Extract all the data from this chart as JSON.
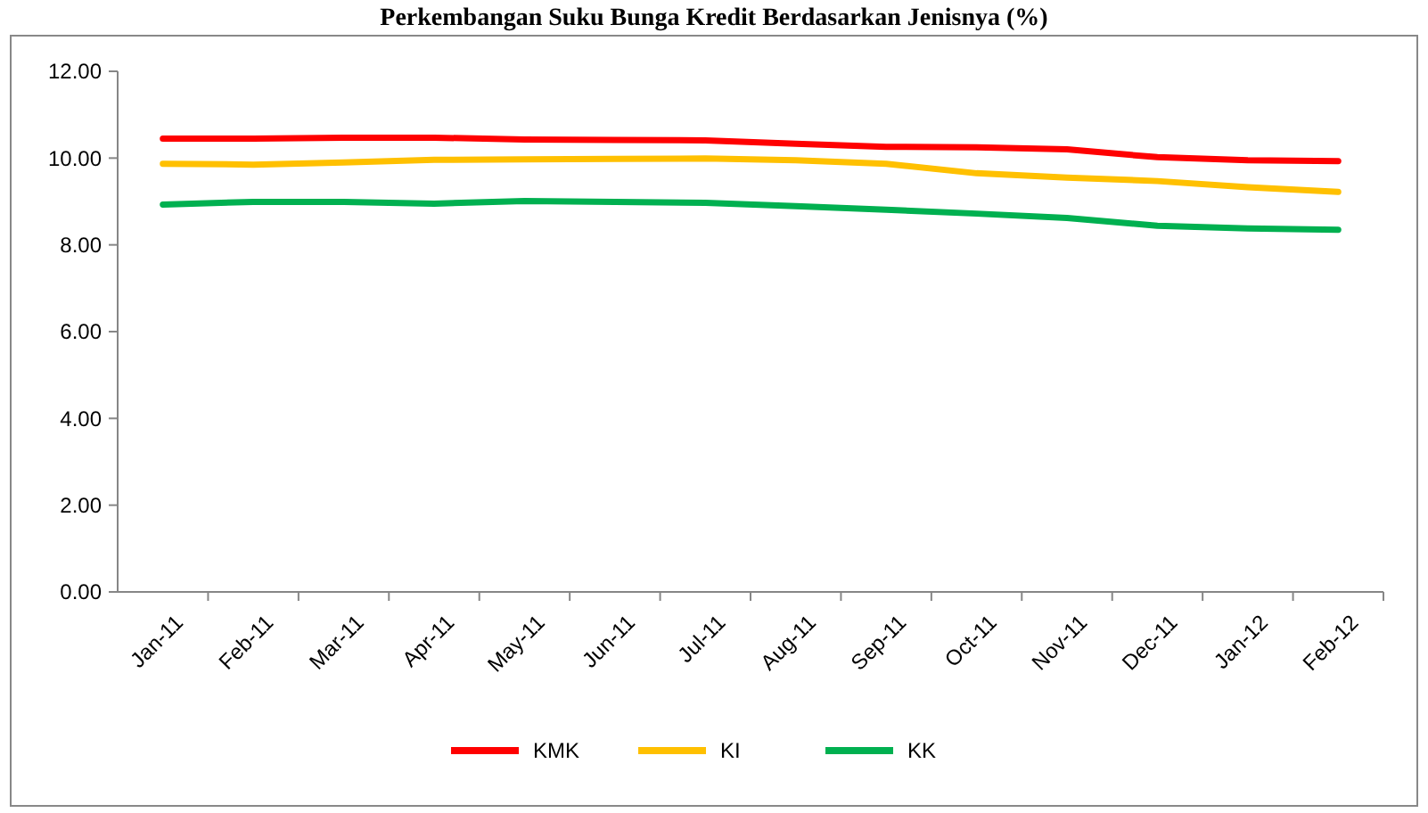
{
  "chart_data": {
    "type": "line",
    "title": "Perkembangan Suku Bunga Kredit Berdasarkan Jenisnya (%)",
    "categories": [
      "Jan-11",
      "Feb-11",
      "Mar-11",
      "Apr-11",
      "May-11",
      "Jun-11",
      "Jul-11",
      "Aug-11",
      "Sep-11",
      "Oct-11",
      "Nov-11",
      "Dec-11",
      "Jan-12",
      "Feb-12"
    ],
    "series": [
      {
        "name": "KMK",
        "color": "#ff0000",
        "values": [
          10.45,
          10.45,
          10.47,
          10.47,
          10.43,
          10.42,
          10.41,
          10.33,
          10.26,
          10.25,
          10.2,
          10.02,
          9.95,
          9.93
        ]
      },
      {
        "name": "KI",
        "color": "#ffc000",
        "values": [
          9.87,
          9.85,
          9.9,
          9.96,
          9.97,
          9.98,
          9.99,
          9.95,
          9.87,
          9.65,
          9.55,
          9.47,
          9.33,
          9.22
        ]
      },
      {
        "name": "KK",
        "color": "#00b050",
        "values": [
          8.93,
          8.99,
          8.99,
          8.95,
          9.01,
          8.99,
          8.97,
          8.89,
          8.81,
          8.72,
          8.62,
          8.44,
          8.38,
          8.35
        ]
      }
    ],
    "ylim": [
      0,
      12
    ],
    "yticks": [
      {
        "value": 0,
        "label": "0.00"
      },
      {
        "value": 2,
        "label": "2.00"
      },
      {
        "value": 4,
        "label": "4.00"
      },
      {
        "value": 6,
        "label": "6.00"
      },
      {
        "value": 8,
        "label": "8.00"
      },
      {
        "value": 10,
        "label": "10.00"
      },
      {
        "value": 12,
        "label": "12.00"
      }
    ],
    "grid": false,
    "legend": "bottom",
    "marker": "none",
    "line_style": "solid"
  }
}
